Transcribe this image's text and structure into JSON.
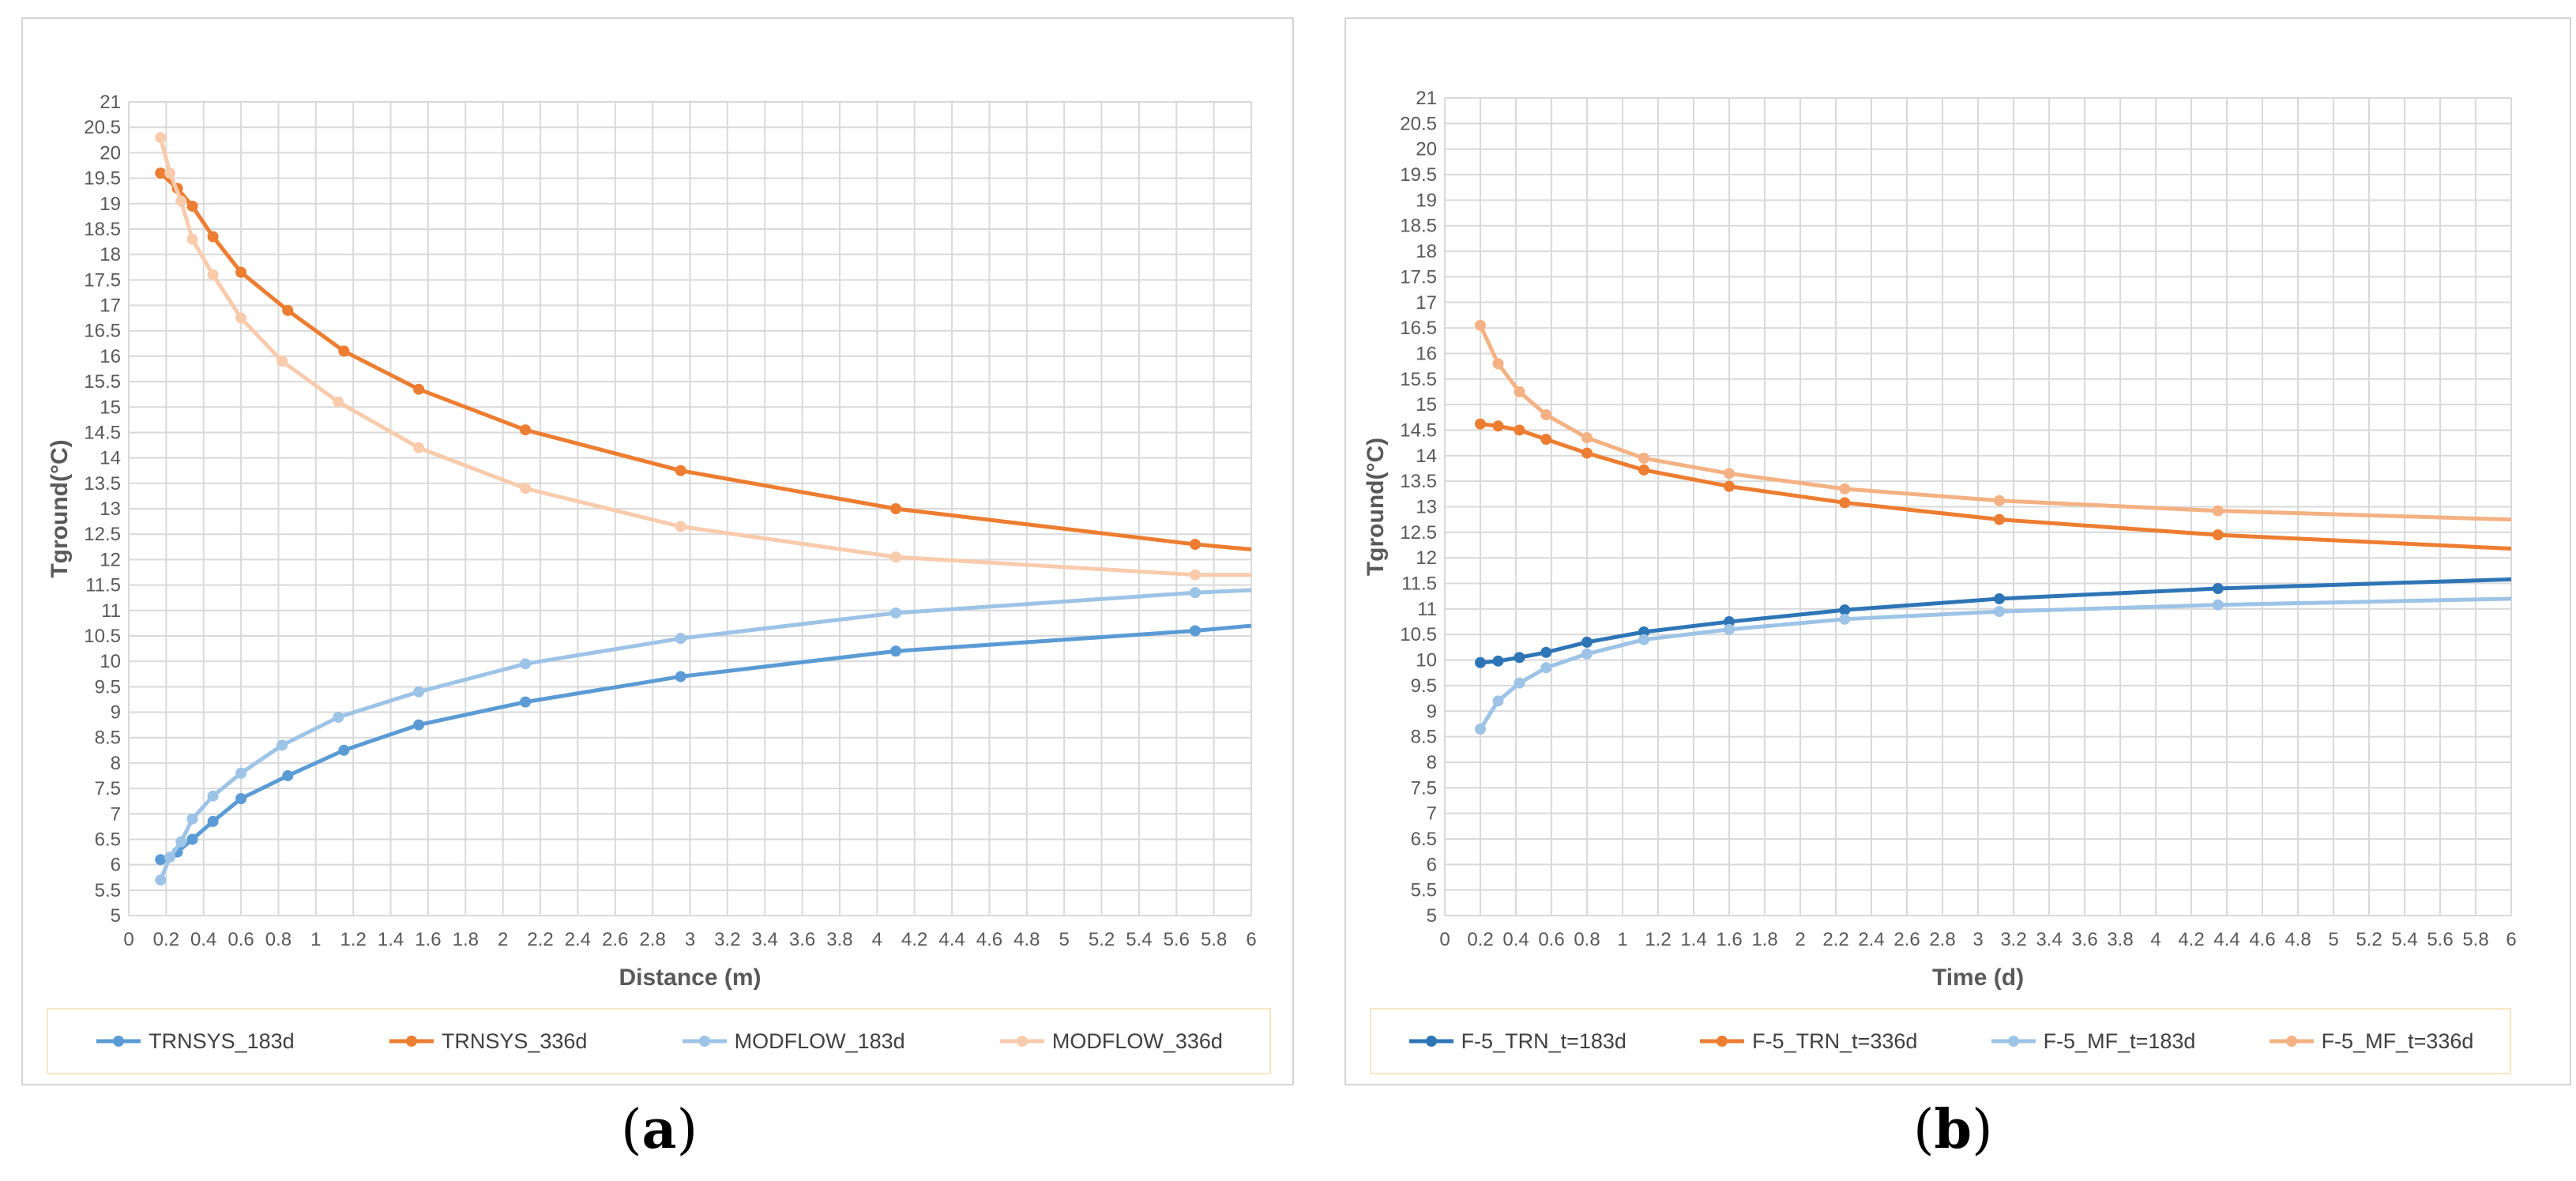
{
  "chart_data": [
    {
      "id": "a",
      "type": "line",
      "panel_label": "a",
      "xlabel": "Distance (m)",
      "ylabel": "Tground(°C)",
      "xlim": [
        0,
        6
      ],
      "ylim": [
        5,
        21
      ],
      "xstep": 0.2,
      "ystep": 0.5,
      "grid": true,
      "legend_position": "bottom",
      "series": [
        {
          "name": "TRNSYS_183d",
          "color": "#5b9bd5",
          "x": [
            0.17,
            0.26,
            0.34,
            0.45,
            0.6,
            0.85,
            1.15,
            1.55,
            2.12,
            2.95,
            4.1,
            5.7,
            6.0
          ],
          "y": [
            6.1,
            6.25,
            6.5,
            6.85,
            7.3,
            7.75,
            8.25,
            8.75,
            9.2,
            9.7,
            10.2,
            10.6,
            10.7
          ],
          "markers": 12
        },
        {
          "name": "TRNSYS_336d",
          "color": "#ed7d31",
          "x": [
            0.17,
            0.26,
            0.34,
            0.45,
            0.6,
            0.85,
            1.15,
            1.55,
            2.12,
            2.95,
            4.1,
            5.7,
            6.0
          ],
          "y": [
            19.6,
            19.3,
            18.95,
            18.35,
            17.65,
            16.9,
            16.1,
            15.35,
            14.55,
            13.75,
            13.0,
            12.3,
            12.2
          ],
          "markers": 12
        },
        {
          "name": "MODFLOW_183d",
          "color": "#9dc3e6",
          "x": [
            0.17,
            0.22,
            0.28,
            0.34,
            0.45,
            0.6,
            0.82,
            1.12,
            1.55,
            2.12,
            2.95,
            4.1,
            5.7,
            6.0
          ],
          "y": [
            5.7,
            6.15,
            6.45,
            6.9,
            7.35,
            7.8,
            8.35,
            8.9,
            9.4,
            9.95,
            10.45,
            10.95,
            11.35,
            11.4
          ],
          "markers": 13
        },
        {
          "name": "MODFLOW_336d",
          "color": "#f8cbad",
          "x": [
            0.17,
            0.22,
            0.28,
            0.34,
            0.45,
            0.6,
            0.82,
            1.12,
            1.55,
            2.12,
            2.95,
            4.1,
            5.7,
            6.0
          ],
          "y": [
            20.3,
            19.6,
            19.05,
            18.3,
            17.6,
            16.75,
            15.9,
            15.1,
            14.2,
            13.4,
            12.65,
            12.05,
            11.7,
            11.7
          ],
          "markers": 13
        }
      ]
    },
    {
      "id": "b",
      "type": "line",
      "panel_label": "b",
      "xlabel": "Time (d)",
      "ylabel": "Tground(°C)",
      "xlim": [
        0,
        6
      ],
      "ylim": [
        5,
        21
      ],
      "xstep": 0.2,
      "ystep": 0.5,
      "grid": true,
      "legend_position": "bottom",
      "series": [
        {
          "name": "F-5_TRN_t=183d",
          "color": "#2e75b6",
          "x": [
            0.2,
            0.3,
            0.42,
            0.57,
            0.8,
            1.12,
            1.6,
            2.25,
            3.12,
            4.35,
            6.0
          ],
          "y": [
            9.95,
            9.98,
            10.05,
            10.15,
            10.35,
            10.55,
            10.75,
            10.98,
            11.2,
            11.4,
            11.58
          ],
          "markers": 10
        },
        {
          "name": "F-5_TRN_t=336d",
          "color": "#ed7d31",
          "x": [
            0.2,
            0.3,
            0.42,
            0.57,
            0.8,
            1.12,
            1.6,
            2.25,
            3.12,
            4.35,
            6.0
          ],
          "y": [
            14.62,
            14.58,
            14.5,
            14.32,
            14.05,
            13.72,
            13.4,
            13.08,
            12.75,
            12.45,
            12.18
          ],
          "markers": 10
        },
        {
          "name": "F-5_MF_t=183d",
          "color": "#9dc3e6",
          "x": [
            0.2,
            0.3,
            0.42,
            0.57,
            0.8,
            1.12,
            1.6,
            2.25,
            3.12,
            4.35,
            6.0
          ],
          "y": [
            8.65,
            9.2,
            9.55,
            9.85,
            10.12,
            10.4,
            10.6,
            10.8,
            10.95,
            11.08,
            11.2
          ],
          "markers": 10
        },
        {
          "name": "F-5_MF_t=336d",
          "color": "#f4b183",
          "x": [
            0.2,
            0.3,
            0.42,
            0.57,
            0.8,
            1.12,
            1.6,
            2.25,
            3.12,
            4.35,
            6.0
          ],
          "y": [
            16.55,
            15.8,
            15.25,
            14.8,
            14.35,
            13.95,
            13.65,
            13.35,
            13.12,
            12.92,
            12.75
          ],
          "markers": 10
        }
      ]
    }
  ],
  "panel_labels": {
    "a": "a",
    "b": "b"
  }
}
